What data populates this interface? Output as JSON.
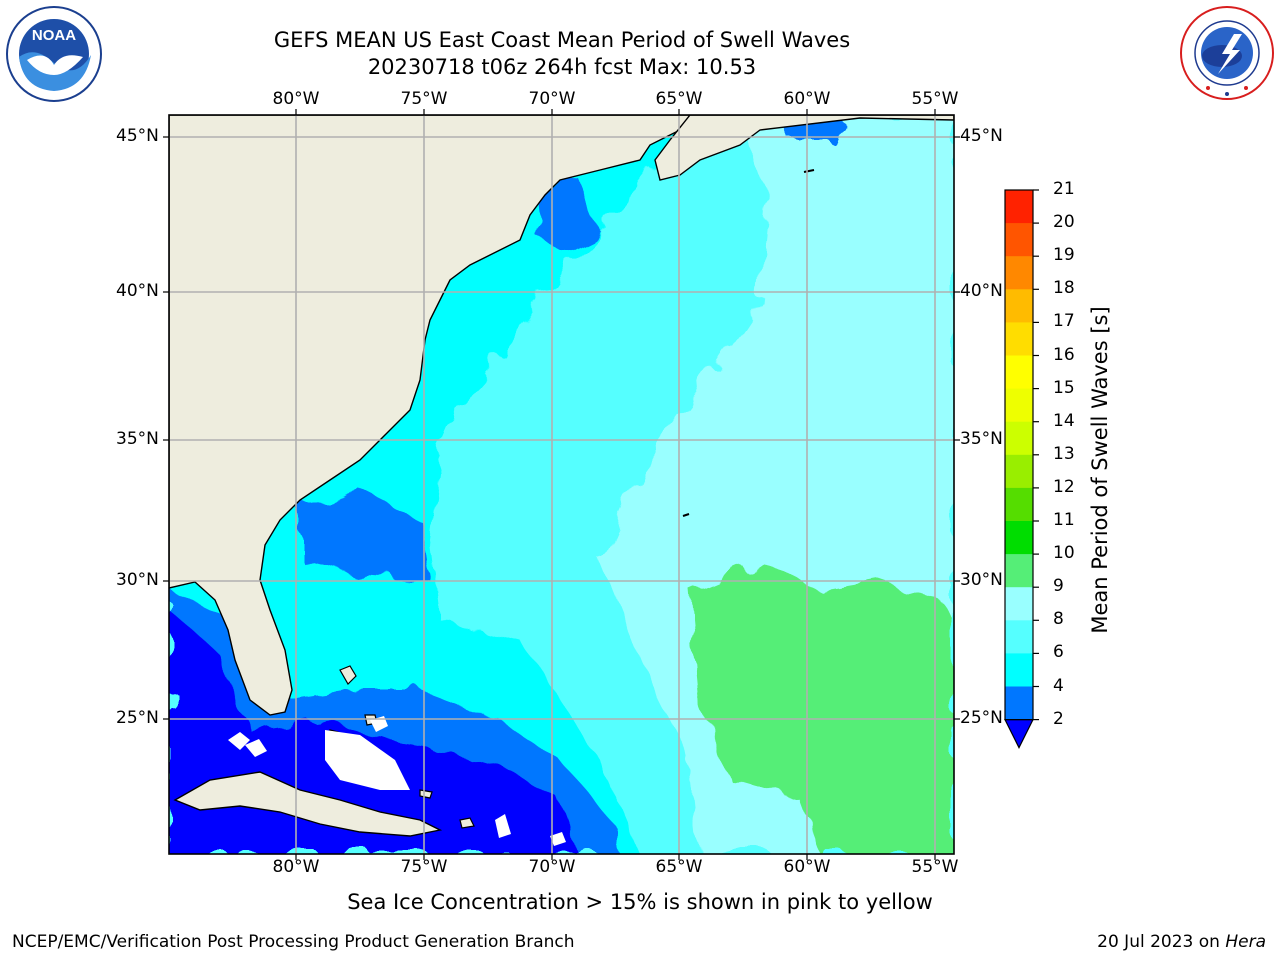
{
  "header": {
    "title_line1": "GEFS MEAN US East Coast Mean Period of Swell Waves",
    "title_line2": "20230718 t06z 264h fcst   Max: 10.53"
  },
  "logos": {
    "left": {
      "name": "noaa-logo",
      "text": "NOAA",
      "ring_text": "NATIONAL OCEANIC AND ATMOSPHERIC ADMINISTRATION · U.S. DEPARTMENT OF COMMERCE"
    },
    "right": {
      "name": "nws-logo",
      "ring_text": "NATIONAL WEATHER SERVICE"
    }
  },
  "map": {
    "longitude_labels": [
      "80°W",
      "75°W",
      "70°W",
      "65°W",
      "60°W",
      "55°W"
    ],
    "latitude_labels": [
      "45°N",
      "40°N",
      "35°N",
      "30°N",
      "25°N"
    ],
    "extent": {
      "lon_min": -84.4,
      "lon_max": -54.4,
      "lat_min": 20.3,
      "lat_max": 45.8
    },
    "land_color": "#eeedde",
    "grid_color": "#b0b0b0"
  },
  "colorbar": {
    "title": "Mean Period of Swell Waves [s]",
    "tick_labels": [
      "2",
      "4",
      "6",
      "8",
      "9",
      "10",
      "11",
      "12",
      "13",
      "14",
      "15",
      "16",
      "17",
      "18",
      "19",
      "20",
      "21"
    ],
    "colors": [
      "#0000ff",
      "#0077ff",
      "#00ffff",
      "#55ffff",
      "#99ffff",
      "#55ee77",
      "#00dd00",
      "#55dd00",
      "#99ee00",
      "#ccff00",
      "#eeff00",
      "#ffff00",
      "#ffdd00",
      "#ffbb00",
      "#ff8800",
      "#ff5500",
      "#ff2200",
      "#ff0000"
    ]
  },
  "footer": {
    "note": "Sea Ice Concentration > 15% is shown in pink to yellow",
    "credit": "NCEP/EMC/Verification Post Processing Product Generation Branch",
    "date": "20 Jul 2023 on ",
    "machine": "Hera"
  }
}
